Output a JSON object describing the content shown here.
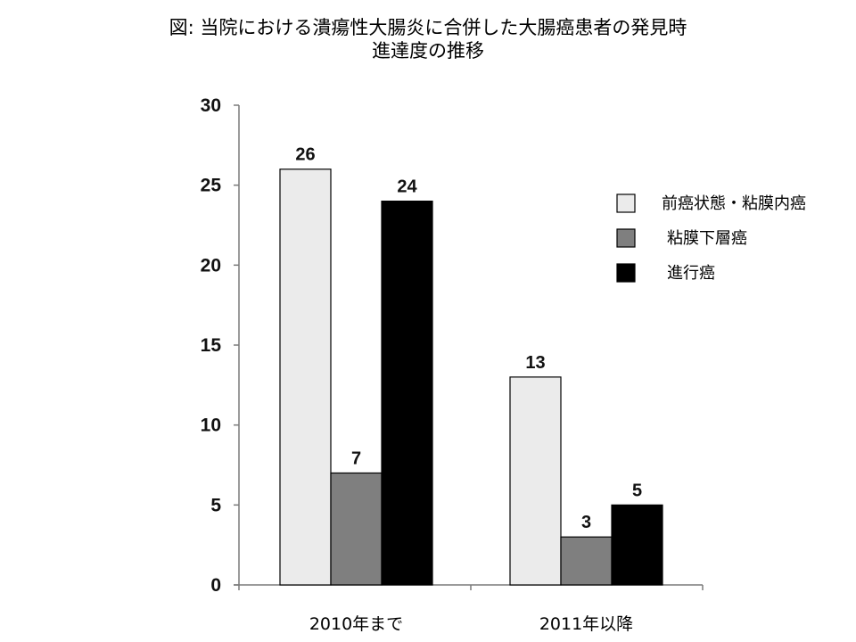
{
  "title": {
    "line1": "図: 当院における潰瘍性大腸炎に合併した大腸癌患者の発見時",
    "line2": "進達度の推移"
  },
  "chart_data": {
    "type": "bar",
    "categories": [
      "2010年まで",
      "2011年以降"
    ],
    "series": [
      {
        "name": "前癌状態・粘膜内癌",
        "values": [
          26,
          13
        ],
        "color": "#ebebeb"
      },
      {
        "name": "粘膜下層癌",
        "values": [
          7,
          3
        ],
        "color": "#7f7f7f"
      },
      {
        "name": "進行癌",
        "values": [
          24,
          5
        ],
        "color": "#000000"
      }
    ],
    "yticks": [
      0,
      5,
      10,
      15,
      20,
      25,
      30
    ],
    "ylim": [
      0,
      30
    ],
    "grid": false,
    "legend": "right",
    "data_labels": true
  }
}
